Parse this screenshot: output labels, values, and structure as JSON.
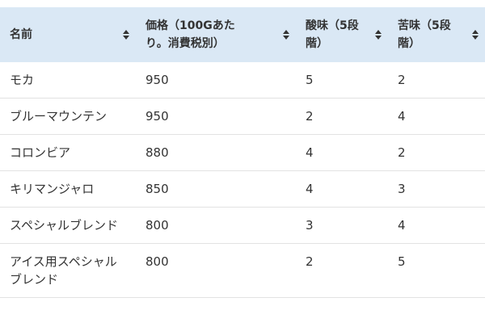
{
  "table": {
    "headers": [
      "名前",
      "価格（100Gあたり。消費税別）",
      "酸味（5段階）",
      "苦味（5段階）"
    ],
    "rows": [
      [
        "モカ",
        "950",
        "5",
        "2"
      ],
      [
        "ブルーマウンテン",
        "950",
        "2",
        "4"
      ],
      [
        "コロンビア",
        "880",
        "4",
        "2"
      ],
      [
        "キリマンジャロ",
        "850",
        "4",
        "3"
      ],
      [
        "スペシャルブレンド",
        "800",
        "3",
        "4"
      ],
      [
        "アイス用スペシャルブレンド",
        "800",
        "2",
        "5"
      ]
    ]
  }
}
